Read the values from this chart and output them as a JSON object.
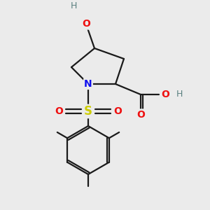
{
  "bg_color": "#ebebeb",
  "bond_color": "#1a1a1a",
  "N_color": "#1010ee",
  "O_color": "#ee1010",
  "S_color": "#cccc00",
  "H_color": "#5a8080",
  "line_width": 1.6,
  "figsize": [
    3.0,
    3.0
  ],
  "dpi": 100,
  "xlim": [
    0,
    10
  ],
  "ylim": [
    0,
    10
  ]
}
